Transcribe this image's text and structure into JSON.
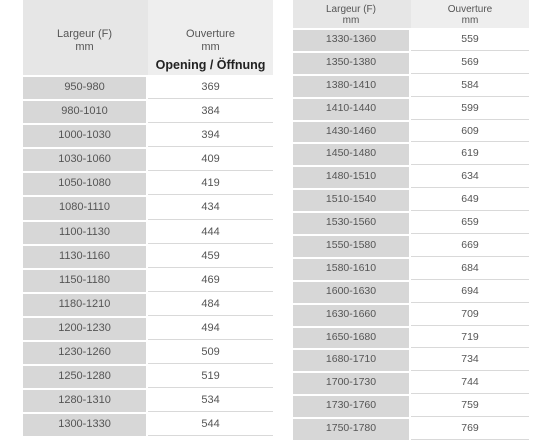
{
  "left_table": {
    "header": {
      "col1_line1": "Largeur (F)",
      "col1_line2": "mm",
      "col2_line1": "Ouverture",
      "col2_line2": "mm",
      "col2_line3": "Opening / Öffnung"
    },
    "rows": [
      {
        "width": "950-980",
        "opening": "369"
      },
      {
        "width": "980-1010",
        "opening": "384"
      },
      {
        "width": "1000-1030",
        "opening": "394"
      },
      {
        "width": "1030-1060",
        "opening": "409"
      },
      {
        "width": "1050-1080",
        "opening": "419"
      },
      {
        "width": "1080-1110",
        "opening": "434"
      },
      {
        "width": "1100-1130",
        "opening": "444"
      },
      {
        "width": "1130-1160",
        "opening": "459"
      },
      {
        "width": "1150-1180",
        "opening": "469"
      },
      {
        "width": "1180-1210",
        "opening": "484"
      },
      {
        "width": "1200-1230",
        "opening": "494"
      },
      {
        "width": "1230-1260",
        "opening": "509"
      },
      {
        "width": "1250-1280",
        "opening": "519"
      },
      {
        "width": "1280-1310",
        "opening": "534"
      },
      {
        "width": "1300-1330",
        "opening": "544"
      }
    ]
  },
  "right_table": {
    "header": {
      "col1_line1": "Largeur (F)",
      "col1_line2": "mm",
      "col2_line1": "Ouverture",
      "col2_line2": "mm"
    },
    "rows": [
      {
        "width": "1330-1360",
        "opening": "559"
      },
      {
        "width": "1350-1380",
        "opening": "569"
      },
      {
        "width": "1380-1410",
        "opening": "584"
      },
      {
        "width": "1410-1440",
        "opening": "599"
      },
      {
        "width": "1430-1460",
        "opening": "609"
      },
      {
        "width": "1450-1480",
        "opening": "619"
      },
      {
        "width": "1480-1510",
        "opening": "634"
      },
      {
        "width": "1510-1540",
        "opening": "649"
      },
      {
        "width": "1530-1560",
        "opening": "659"
      },
      {
        "width": "1550-1580",
        "opening": "669"
      },
      {
        "width": "1580-1610",
        "opening": "684"
      },
      {
        "width": "1600-1630",
        "opening": "694"
      },
      {
        "width": "1630-1660",
        "opening": "709"
      },
      {
        "width": "1650-1680",
        "opening": "719"
      },
      {
        "width": "1680-1710",
        "opening": "734"
      },
      {
        "width": "1700-1730",
        "opening": "744"
      },
      {
        "width": "1730-1760",
        "opening": "759"
      },
      {
        "width": "1750-1780",
        "opening": "769"
      }
    ]
  }
}
